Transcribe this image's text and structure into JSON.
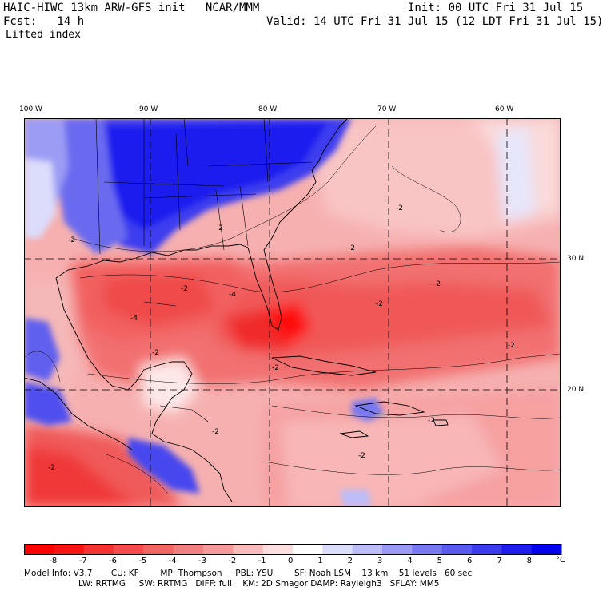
{
  "header": {
    "title": "HAIC-HIWC 13km ARW-GFS init   NCAR/MMM",
    "init": "Init: 00 UTC Fri 31 Jul 15",
    "fcst": "Fcst:   14 h",
    "valid": "Valid: 14 UTC Fri 31 Jul 15 (12 LDT Fri 31 Jul 15)",
    "field": "Lifted index"
  },
  "axes": {
    "lon_labels": [
      "100 W",
      "90 W",
      "80 W",
      "70 W",
      "60 W"
    ],
    "lat_labels": [
      "30 N",
      "20 N"
    ]
  },
  "colorbar": {
    "ticks": [
      "-8",
      "-7",
      "-6",
      "-5",
      "-4",
      "-3",
      "-2",
      "-1",
      "0",
      "1",
      "2",
      "3",
      "4",
      "5",
      "6",
      "7",
      "8"
    ],
    "unit": "°C",
    "colors": [
      "#ff0000",
      "#fb1414",
      "#f73232",
      "#f44c4c",
      "#f26666",
      "#f08080",
      "#f49a9a",
      "#f8bcbc",
      "#fcdede",
      "#ffffff",
      "#dcdcfb",
      "#bcbcf7",
      "#9a9af4",
      "#7878f0",
      "#5a5aef",
      "#3c3cef",
      "#1e1eef",
      "#0000ee"
    ]
  },
  "contour_labels": [
    "-2",
    "-2",
    "-2",
    "-2",
    "-2",
    "-2",
    "-2",
    "-4",
    "-4",
    "-2",
    "-2",
    "-2",
    "-2",
    "-2",
    "-2",
    "-2"
  ],
  "model_info": {
    "line1": "Model Info: V3.7       CU: KF        MP: Thompson     PBL: YSU        SF: Noah LSM    13 km    51 levels   60 sec",
    "line2": "LW: RRTMG     SW: RRTMG   DIFF: full    KM: 2D Smagor DAMP: Rayleigh3   SFLAY: MM5"
  }
}
